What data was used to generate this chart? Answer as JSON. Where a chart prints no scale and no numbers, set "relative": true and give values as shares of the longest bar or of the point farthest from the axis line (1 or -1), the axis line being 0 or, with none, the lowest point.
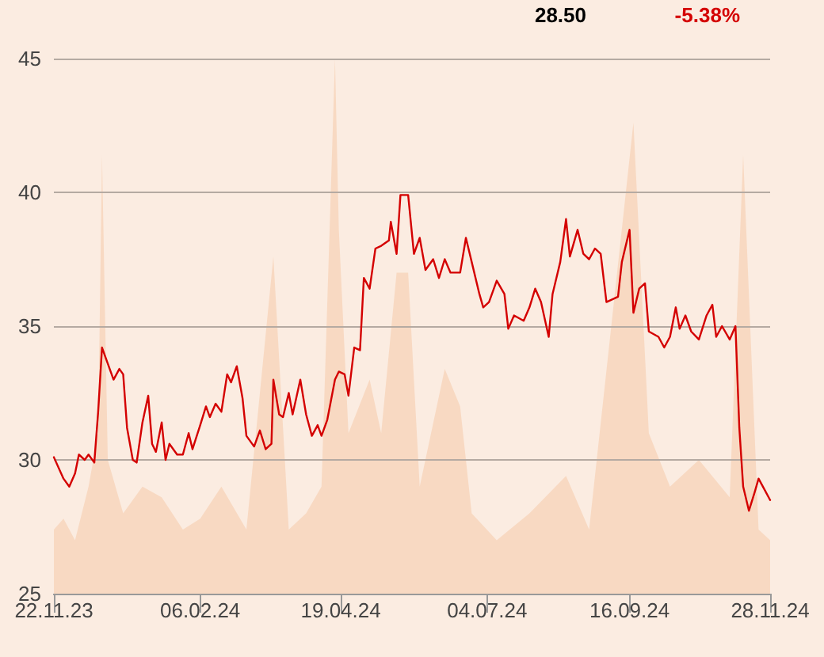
{
  "chart_data": [
    {
      "type": "area",
      "relative": true,
      "xlim": [
        "2023-11-22",
        "2024-11-28"
      ],
      "series": [
        {
          "color": "#f8d9c2",
          "x": [
            "2023-11-22",
            "2023-11-27",
            "2023-12-03",
            "2023-12-10",
            "2023-12-15",
            "2023-12-17",
            "2023-12-20",
            "2023-12-28",
            "2024-01-07",
            "2024-01-17",
            "2024-01-28",
            "2024-02-06",
            "2024-02-17",
            "2024-03-01",
            "2024-03-15",
            "2024-03-23",
            "2024-04-01",
            "2024-04-09",
            "2024-04-16",
            "2024-04-18",
            "2024-04-23",
            "2024-05-04",
            "2024-05-10",
            "2024-05-18",
            "2024-05-24",
            "2024-05-30",
            "2024-06-12",
            "2024-06-20",
            "2024-06-26",
            "2024-07-09",
            "2024-07-26",
            "2024-08-14",
            "2024-08-26",
            "2024-09-18",
            "2024-09-26",
            "2024-10-07",
            "2024-10-22",
            "2024-11-07",
            "2024-11-14",
            "2024-11-22",
            "2024-11-28"
          ],
          "values": [
            0.12,
            0.14,
            0.1,
            0.2,
            0.3,
            0.82,
            0.25,
            0.15,
            0.2,
            0.18,
            0.12,
            0.14,
            0.2,
            0.12,
            0.63,
            0.12,
            0.15,
            0.2,
            1,
            0.68,
            0.3,
            0.4,
            0.3,
            0.6,
            0.6,
            0.2,
            0.42,
            0.35,
            0.15,
            0.1,
            0.15,
            0.22,
            0.12,
            0.88,
            0.3,
            0.2,
            0.25,
            0.18,
            0.82,
            0.12,
            0.1
          ]
        }
      ]
    },
    {
      "type": "line",
      "annotations": [
        "28.50",
        "-5.38%"
      ],
      "xlim": [
        "2023-11-22",
        "2024-11-28"
      ],
      "xticks": [
        {
          "value": "2023-11-22",
          "label": "22.11.23"
        },
        {
          "value": "2024-02-06",
          "label": "06.02.24"
        },
        {
          "value": "2024-04-19",
          "label": "19.04.24"
        },
        {
          "value": "2024-07-04",
          "label": "04.07.24"
        },
        {
          "value": "2024-09-16",
          "label": "16.09.24"
        },
        {
          "value": "2024-11-28",
          "label": "28.11.24"
        }
      ],
      "ylim": [
        25,
        45
      ],
      "yticks": [
        25,
        30,
        35,
        40,
        45
      ],
      "grid": "y",
      "marker": "none",
      "line_style": "solid",
      "series": [
        {
          "color": "#d40000",
          "x": [
            "2023-11-22",
            "2023-11-27",
            "2023-11-30",
            "2023-12-03",
            "2023-12-05",
            "2023-12-08",
            "2023-12-10",
            "2023-12-13",
            "2023-12-15",
            "2023-12-17",
            "2023-12-20",
            "2023-12-23",
            "2023-12-26",
            "2023-12-28",
            "2023-12-30",
            "2024-01-02",
            "2024-01-04",
            "2024-01-07",
            "2024-01-10",
            "2024-01-12",
            "2024-01-14",
            "2024-01-17",
            "2024-01-19",
            "2024-01-21",
            "2024-01-25",
            "2024-01-28",
            "2024-01-31",
            "2024-02-02",
            "2024-02-06",
            "2024-02-09",
            "2024-02-11",
            "2024-02-14",
            "2024-02-17",
            "2024-02-20",
            "2024-02-22",
            "2024-02-25",
            "2024-02-28",
            "2024-03-01",
            "2024-03-05",
            "2024-03-08",
            "2024-03-11",
            "2024-03-14",
            "2024-03-15",
            "2024-03-18",
            "2024-03-20",
            "2024-03-23",
            "2024-03-25",
            "2024-03-29",
            "2024-04-01",
            "2024-04-04",
            "2024-04-07",
            "2024-04-09",
            "2024-04-12",
            "2024-04-16",
            "2024-04-18",
            "2024-04-21",
            "2024-04-23",
            "2024-04-26",
            "2024-04-29",
            "2024-05-01",
            "2024-05-04",
            "2024-05-07",
            "2024-05-10",
            "2024-05-14",
            "2024-05-15",
            "2024-05-18",
            "2024-05-20",
            "2024-05-24",
            "2024-05-27",
            "2024-05-30",
            "2024-06-02",
            "2024-06-06",
            "2024-06-09",
            "2024-06-12",
            "2024-06-15",
            "2024-06-20",
            "2024-06-23",
            "2024-06-26",
            "2024-06-30",
            "2024-07-02",
            "2024-07-05",
            "2024-07-09",
            "2024-07-13",
            "2024-07-15",
            "2024-07-18",
            "2024-07-23",
            "2024-07-26",
            "2024-07-29",
            "2024-08-01",
            "2024-08-05",
            "2024-08-07",
            "2024-08-11",
            "2024-08-14",
            "2024-08-16",
            "2024-08-20",
            "2024-08-23",
            "2024-08-26",
            "2024-08-29",
            "2024-09-01",
            "2024-09-04",
            "2024-09-10",
            "2024-09-12",
            "2024-09-16",
            "2024-09-18",
            "2024-09-21",
            "2024-09-24",
            "2024-09-26",
            "2024-10-01",
            "2024-10-04",
            "2024-10-07",
            "2024-10-10",
            "2024-10-12",
            "2024-10-15",
            "2024-10-18",
            "2024-10-22",
            "2024-10-26",
            "2024-10-29",
            "2024-10-31",
            "2024-11-03",
            "2024-11-07",
            "2024-11-10",
            "2024-11-12",
            "2024-11-14",
            "2024-11-17",
            "2024-11-20",
            "2024-11-22",
            "2024-11-25",
            "2024-11-28"
          ],
          "values": [
            30.1,
            29.3,
            29.0,
            29.5,
            30.2,
            30.0,
            30.2,
            29.9,
            31.8,
            34.2,
            33.6,
            33.0,
            33.4,
            33.2,
            31.2,
            30.0,
            29.9,
            31.4,
            32.4,
            30.6,
            30.3,
            31.4,
            30.0,
            30.6,
            30.2,
            30.2,
            31.0,
            30.4,
            31.3,
            32.0,
            31.6,
            32.1,
            31.8,
            33.2,
            32.9,
            33.5,
            32.3,
            30.9,
            30.5,
            31.1,
            30.4,
            30.6,
            33.0,
            31.7,
            31.6,
            32.5,
            31.7,
            33.0,
            31.7,
            30.9,
            31.3,
            30.9,
            31.5,
            33.0,
            33.3,
            33.2,
            32.4,
            34.2,
            34.1,
            36.8,
            36.4,
            37.9,
            38.0,
            38.2,
            38.9,
            37.7,
            39.9,
            39.9,
            37.7,
            38.3,
            37.1,
            37.5,
            36.8,
            37.5,
            37.0,
            37.0,
            38.3,
            37.4,
            36.2,
            35.7,
            35.9,
            36.7,
            36.2,
            34.9,
            35.4,
            35.2,
            35.7,
            36.4,
            35.9,
            34.6,
            36.2,
            37.4,
            39.0,
            37.6,
            38.6,
            37.7,
            37.5,
            37.9,
            37.7,
            35.9,
            36.1,
            37.4,
            38.6,
            35.5,
            36.4,
            36.6,
            34.8,
            34.6,
            34.2,
            34.6,
            35.7,
            34.9,
            35.4,
            34.8,
            34.5,
            35.4,
            35.8,
            34.6,
            35.0,
            34.5,
            35.0,
            31.2,
            29.0,
            28.1,
            28.8,
            29.3,
            28.9,
            28.5
          ]
        }
      ]
    }
  ]
}
